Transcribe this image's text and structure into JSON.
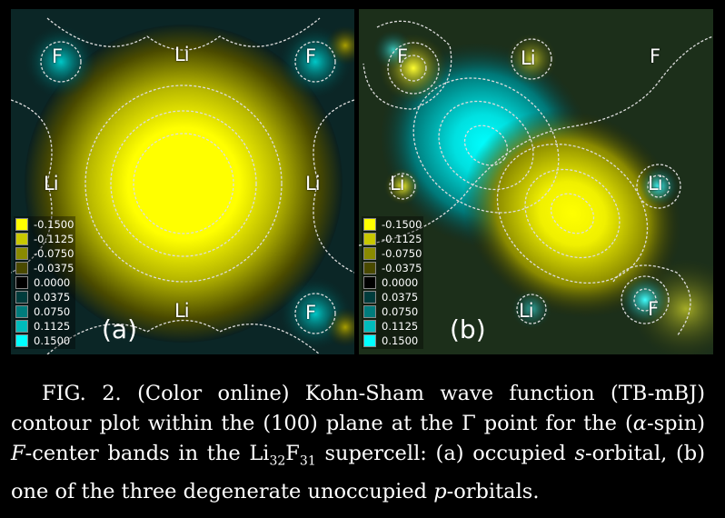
{
  "panels": {
    "a": {
      "tag": "(a)",
      "atoms": [
        "F",
        "Li",
        "F",
        "Li",
        "Li",
        "Li",
        "F"
      ]
    },
    "b": {
      "tag": "(b)",
      "atoms": [
        "F",
        "Li",
        "F",
        "Li",
        "Li",
        "Li",
        "F"
      ]
    }
  },
  "legend": {
    "levels": [
      "-0.1500",
      "-0.1125",
      "-0.0750",
      "-0.0375",
      "0.0000",
      "0.0375",
      "0.0750",
      "0.1125",
      "0.1500"
    ],
    "colors": [
      "#ffff00",
      "#c8c800",
      "#8a8a00",
      "#4a4a00",
      "#000000",
      "#003c3c",
      "#007c7c",
      "#00bcbc",
      "#00ffff"
    ]
  },
  "caption": {
    "fig_label": "FIG. 2.",
    "part1": "(Color online) Kohn-Sham wave function (TB-mBJ) contour plot within the (100) plane at the Γ point for the (",
    "alpha": "α",
    "part2": "-spin) ",
    "F_center": "F",
    "part3": "-center bands in the Li",
    "sub32": "32",
    "F_mid": "F",
    "sub31": "31",
    "part4": " supercell: (a) occupied ",
    "s": "s",
    "part5": "-orbital, (b) one of the three degenerate unoccupied ",
    "p": "p",
    "part6": "-orbitals."
  }
}
